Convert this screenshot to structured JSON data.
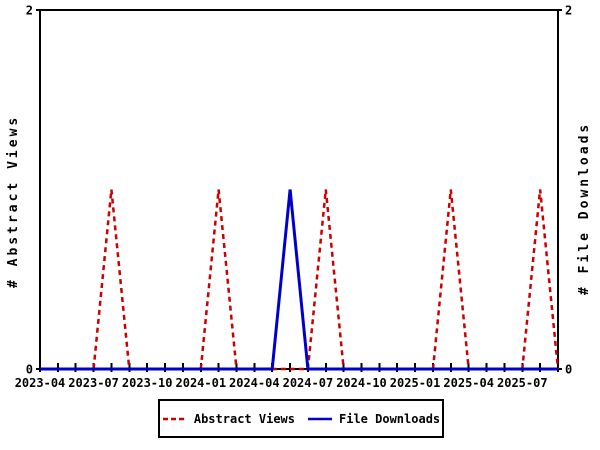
{
  "chart": {
    "left_axis_title": "# Abstract Views",
    "right_axis_title": "# File Downloads",
    "colors": {
      "abstract_views": "#cc0000",
      "file_downloads": "#0000cc",
      "axis": "#000000",
      "background": "#ffffff"
    },
    "legend": {
      "items": [
        {
          "label": "Abstract Views"
        },
        {
          "label": "File Downloads"
        }
      ]
    }
  },
  "chart_data": {
    "type": "line",
    "title": "",
    "xlabel": "",
    "ylabel_left": "# Abstract Views",
    "ylabel_right": "# File Downloads",
    "ylim": [
      0,
      2
    ],
    "yticks": [
      0,
      2
    ],
    "y_tick_labels": [
      "0",
      "2"
    ],
    "grid": false,
    "legend_position": "bottom-center",
    "x": [
      "2023-04",
      "2023-05",
      "2023-06",
      "2023-07",
      "2023-08",
      "2023-09",
      "2023-10",
      "2023-11",
      "2023-12",
      "2024-01",
      "2024-02",
      "2024-03",
      "2024-04",
      "2024-05",
      "2024-06",
      "2024-07",
      "2024-08",
      "2024-09",
      "2024-10",
      "2024-11",
      "2024-12",
      "2025-01",
      "2025-02",
      "2025-03",
      "2025-04",
      "2025-05",
      "2025-06",
      "2025-07",
      "2025-08",
      "2025-09"
    ],
    "x_tick_labels": [
      "2023-04",
      "2023-07",
      "2023-10",
      "2024-01",
      "2024-04",
      "2024-07",
      "2024-10",
      "2025-01",
      "2025-04",
      "2025-07"
    ],
    "series": [
      {
        "name": "Abstract Views",
        "color": "#cc0000",
        "dashed": true,
        "values": [
          0,
          0,
          0,
          0,
          1,
          0,
          0,
          0,
          0,
          0,
          1,
          0,
          0,
          0,
          0,
          0,
          1,
          0,
          0,
          0,
          0,
          0,
          0,
          1,
          0,
          0,
          0,
          0,
          1,
          0
        ]
      },
      {
        "name": "File Downloads",
        "color": "#0000cc",
        "dashed": false,
        "values": [
          0,
          0,
          0,
          0,
          0,
          0,
          0,
          0,
          0,
          0,
          0,
          0,
          0,
          0,
          1,
          0,
          0,
          0,
          0,
          0,
          0,
          0,
          0,
          0,
          0,
          0,
          0,
          0,
          0,
          0
        ]
      }
    ]
  }
}
